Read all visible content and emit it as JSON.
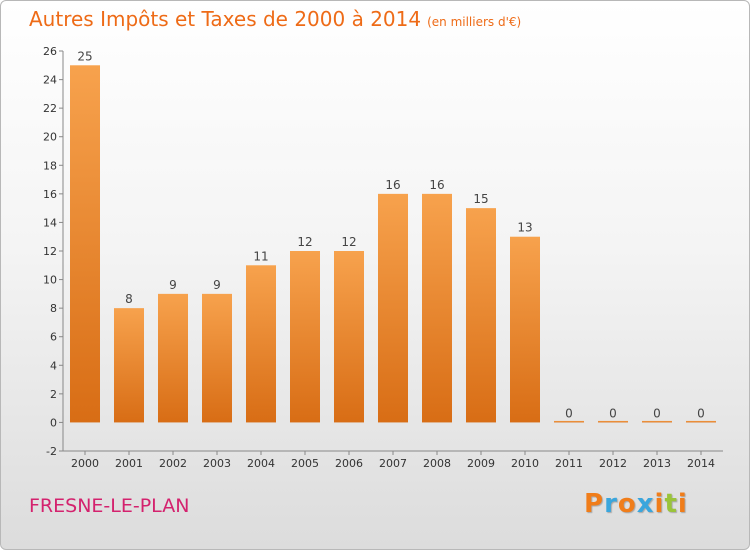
{
  "chart_data": {
    "type": "bar",
    "title": "Autres Impôts et Taxes de 2000 à 2014",
    "unit_label": "(en milliers d'€)",
    "categories": [
      "2000",
      "2001",
      "2002",
      "2003",
      "2004",
      "2005",
      "2006",
      "2007",
      "2008",
      "2009",
      "2010",
      "2011",
      "2012",
      "2013",
      "2014"
    ],
    "values": [
      25,
      8,
      9,
      9,
      11,
      12,
      12,
      16,
      16,
      15,
      13,
      0,
      0,
      0,
      0
    ],
    "ylim": [
      -2,
      26
    ],
    "yticks": [
      -2,
      0,
      2,
      4,
      6,
      8,
      10,
      12,
      14,
      16,
      18,
      20,
      22,
      24,
      26
    ],
    "xlabel": "",
    "ylabel": "",
    "grid": false,
    "bar_color_light": "#f7a24d",
    "bar_color_dark": "#d86d15",
    "title_color": "#ee6b17"
  },
  "footer": {
    "commune": "FRESNE-LE-PLAN",
    "commune_color": "#d4226e",
    "logo_text": "Proxiti",
    "logo_colors": [
      "#f07d1a",
      "#3aa6dd",
      "#f07d1a",
      "#3aa6dd",
      "#f07d1a",
      "#9ac43a",
      "#f07d1a"
    ]
  }
}
